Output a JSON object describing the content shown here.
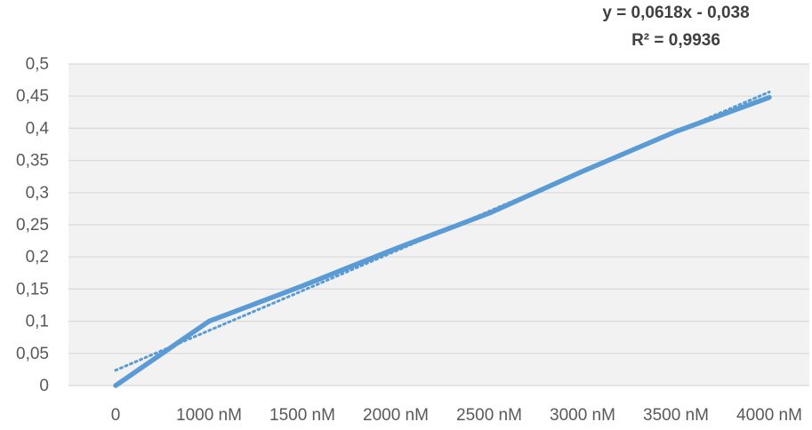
{
  "chart_data": {
    "type": "line",
    "title": "",
    "xlabel": "",
    "ylabel": "",
    "categories": [
      "0",
      "1000 nM",
      "1500 nM",
      "2000 nM",
      "2500 nM",
      "3000 nM",
      "3500 nM",
      "4000 nM"
    ],
    "y_ticks": [
      "0",
      "0,05",
      "0,1",
      "0,15",
      "0,2",
      "0,25",
      "0,3",
      "0,35",
      "0,4",
      "0,45",
      "0,5"
    ],
    "ylim": [
      0,
      0.5
    ],
    "grid": true,
    "legend": "none",
    "series": [
      {
        "values": [
          0.0,
          0.1,
          0.155,
          0.213,
          0.268,
          0.333,
          0.395,
          0.448
        ],
        "color": "#5b9bd5",
        "style": "solid"
      }
    ],
    "trendline": {
      "type": "linear",
      "style": "dotted",
      "color": "#5b9bd5",
      "slope": 0.0618,
      "intercept": -0.038,
      "x_basis": "category index starting at 1"
    },
    "annotations": {
      "equation": "y = 0,0618x - 0,038",
      "r_squared": "R² = 0,9936"
    },
    "colors": {
      "plot_background": "#f2f2f2",
      "gridline": "#d9d9d9",
      "text": "#595959"
    }
  }
}
